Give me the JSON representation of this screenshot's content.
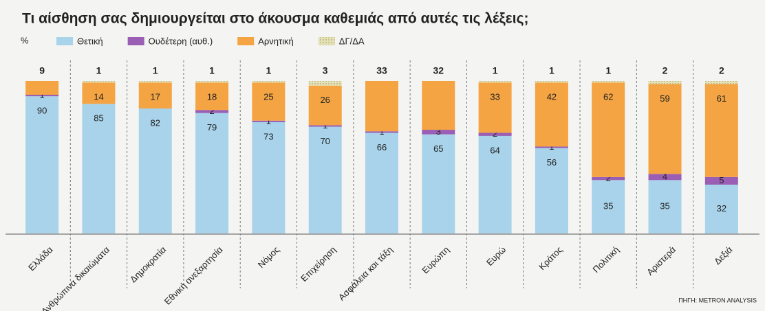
{
  "chart_data": {
    "type": "stacked_bar",
    "title": "Τι αίσθηση σας δημιουργείται στο άκουσμα καθεμιάς από αυτές τις λέξεις;",
    "y_label": "%",
    "source": "ΠΗΓΗ: METRON ANALYSIS",
    "categories": [
      "Ελλάδα",
      "Ανθρώπινα δικαιώματα",
      "Δημοκρατία",
      "Εθνική ανεξαρτησία",
      "Νόμος",
      "Επιχείρηση",
      "Ασφάλεια και τάξη",
      "Ευρώπη",
      "Ευρώ",
      "Κράτος",
      "Πολιτική",
      "Αριστερά",
      "Δεξιά"
    ],
    "ylim": [
      0,
      100
    ],
    "series": [
      {
        "name": "Θετική",
        "color": "#a8d3ea",
        "values": [
          90,
          85,
          82,
          79,
          73,
          70,
          66,
          65,
          64,
          56,
          35,
          35,
          32
        ]
      },
      {
        "name": "Ουδέτερη (αυθ.)",
        "color": "#9a5fb5",
        "values": [
          1,
          0,
          0,
          2,
          1,
          1,
          1,
          3,
          2,
          1,
          2,
          4,
          5
        ]
      },
      {
        "name": "Αρνητική",
        "color": "#f4a443",
        "values": [
          9,
          14,
          17,
          18,
          25,
          26,
          33,
          32,
          33,
          42,
          62,
          59,
          61
        ]
      },
      {
        "name": "ΔΓ/ΔΑ",
        "color": "#d9d5a6",
        "values": [
          0,
          1,
          1,
          1,
          1,
          3,
          0,
          0,
          1,
          1,
          1,
          2,
          2
        ]
      }
    ]
  }
}
